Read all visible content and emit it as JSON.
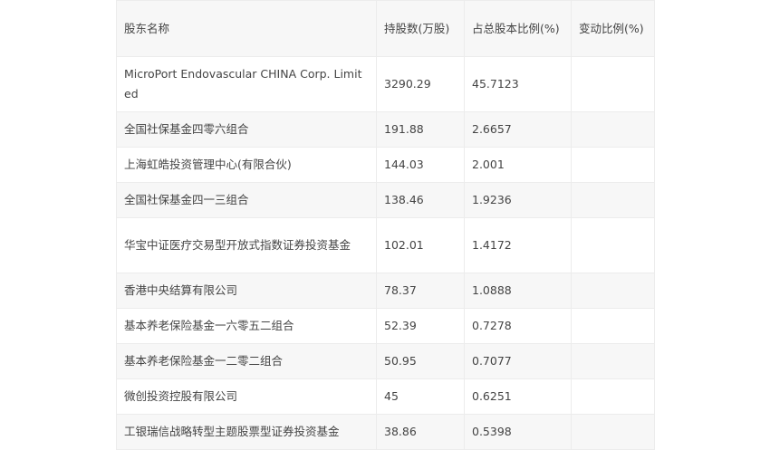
{
  "headers": [
    "股东名称",
    "持股数(万股)",
    "占总股本比例(%)",
    "变动比例(%)"
  ],
  "rows": [
    {
      "name": "MicroPort Endovascular CHINA Corp. Limited",
      "shares": "3290.29",
      "ratio": "45.7123",
      "change": ""
    },
    {
      "name": "全国社保基金四零六组合",
      "shares": "191.88",
      "ratio": "2.6657",
      "change": ""
    },
    {
      "name": "上海虹皓投资管理中心(有限合伙)",
      "shares": "144.03",
      "ratio": "2.001",
      "change": ""
    },
    {
      "name": "全国社保基金四一三组合",
      "shares": "138.46",
      "ratio": "1.9236",
      "change": ""
    },
    {
      "name": "华宝中证医疗交易型开放式指数证券投资基金",
      "shares": "102.01",
      "ratio": "1.4172",
      "change": ""
    },
    {
      "name": "香港中央结算有限公司",
      "shares": "78.37",
      "ratio": "1.0888",
      "change": ""
    },
    {
      "name": "基本养老保险基金一六零五二组合",
      "shares": "52.39",
      "ratio": "0.7278",
      "change": ""
    },
    {
      "name": "基本养老保险基金一二零二组合",
      "shares": "50.95",
      "ratio": "0.7077",
      "change": ""
    },
    {
      "name": "微创投资控股有限公司",
      "shares": "45",
      "ratio": "0.6251",
      "change": ""
    },
    {
      "name": "工银瑞信战略转型主题股票型证券投资基金",
      "shares": "38.86",
      "ratio": "0.5398",
      "change": ""
    }
  ]
}
